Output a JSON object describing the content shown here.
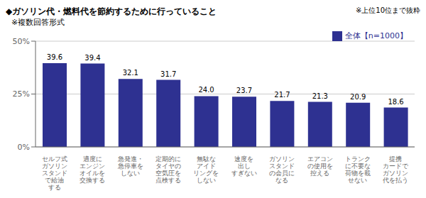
{
  "chart_data": {
    "type": "bar",
    "title": "◆ガソリン代・燃料代を節約するために行っていること",
    "subtitle": "※複数回答形式",
    "annotations": [
      "※上位10位まで抜粋"
    ],
    "categories": [
      "セルフ式\nガソリン\nスタンド\nで給油\nする",
      "適度に\nエンジン\nオイルを\n交換する",
      "急発進・\n急停車を\nしない",
      "定期的に\nタイヤの\n空気圧を\n点検する",
      "無駄な\nアイド\nリングを\nしない",
      "速度を\n出し\nすぎない",
      "ガソリン\nスタンド\nの会員に\nなる",
      "エアコン\nの使用を\n控える",
      "トランク\nに不要な\n荷物を載\nせない",
      "提携\nカードで\nガソリン\n代を払う"
    ],
    "series": [
      {
        "name": "全体【n=1000】",
        "color": "#2e3191",
        "values": [
          39.6,
          39.4,
          32.1,
          31.7,
          24.0,
          23.7,
          21.7,
          21.3,
          20.9,
          18.6
        ],
        "value_labels": [
          "39.6",
          "39.4",
          "32.1",
          "31.7",
          "24.0",
          "23.7",
          "21.7",
          "21.3",
          "20.9",
          "18.6"
        ]
      }
    ],
    "ylim": [
      0,
      50
    ],
    "yticks": [
      {
        "value": 0,
        "label": "0%"
      },
      {
        "value": 25,
        "label": "25%"
      },
      {
        "value": 50,
        "label": "50%"
      }
    ],
    "grid": true,
    "legend": "upper right",
    "data_labels": true
  }
}
